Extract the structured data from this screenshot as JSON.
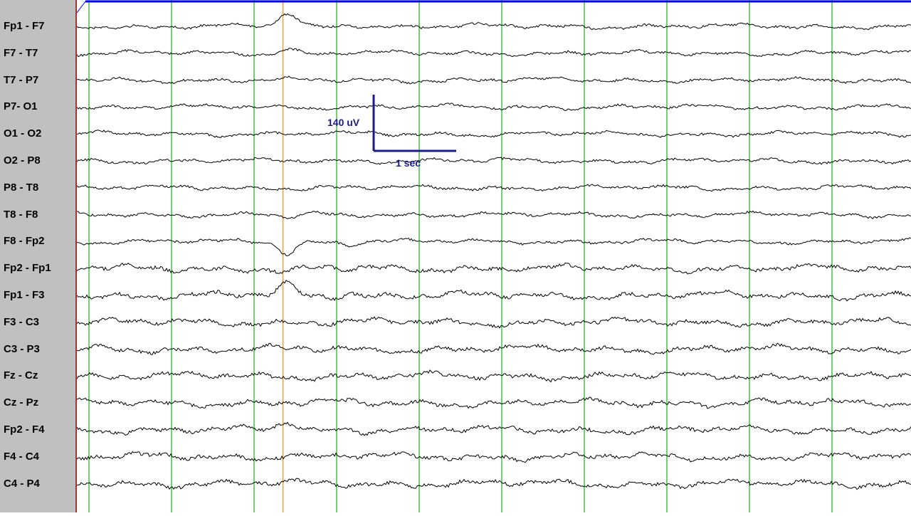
{
  "chart_data": {
    "type": "line",
    "title": "",
    "channels": [
      "Fp1 - F7",
      "F7 - T7",
      "T7 - P7",
      "P7- O1",
      "O1 - O2",
      "O2 - P8",
      "P8 - T8",
      "T8 - F8",
      "F8 - Fp2",
      "Fp2 - Fp1",
      "Fp1 - F3",
      "F3 - C3",
      "C3 - P3",
      "Fz - Cz",
      "Cz - Pz",
      "Fp2 - F4",
      "F4 - C4",
      "C4 - P4"
    ],
    "x_unit": "sec",
    "y_unit": "uV",
    "scale_bar": {
      "amplitude_label": "140 uV",
      "time_label": "1 sec",
      "amplitude_uV": 140,
      "time_sec": 1
    },
    "seconds_shown": 10,
    "event_marker_sec": 2.35,
    "grid": true,
    "colors": {
      "trace": "#000000",
      "second_gridline": "#22aa22",
      "event_marker": "#f0a040",
      "top_bar": "#0000ff",
      "scale_bar": "#1a1a8c",
      "label_panel": "#c0c0c0",
      "panel_border": "#b03030"
    }
  }
}
